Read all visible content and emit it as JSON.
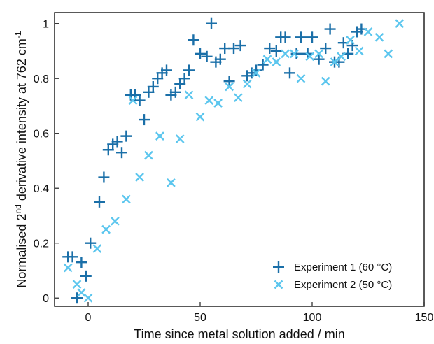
{
  "chart_data": {
    "type": "scatter",
    "title": "",
    "xlabel": "Time since metal solution added / min",
    "ylabel_main": "Normalised 2",
    "ylabel_sup1": "nd",
    "ylabel_mid": " derivative intensity at 762 cm",
    "ylabel_sup2": "-1",
    "xlim": [
      -15,
      150
    ],
    "ylim": [
      -0.03,
      1.04
    ],
    "x_ticks": [
      0,
      50,
      100,
      150
    ],
    "y_ticks": [
      0,
      0.2,
      0.4,
      0.6,
      0.8,
      1
    ],
    "grid": false,
    "legend_position": "bottom-right",
    "series": [
      {
        "name": "Experiment 1 (60 °C)",
        "marker": "plus",
        "color": "#1a6fa8",
        "points": [
          [
            -9,
            0.15
          ],
          [
            -7,
            0.15
          ],
          [
            -5,
            0.0
          ],
          [
            -3,
            0.13
          ],
          [
            -1,
            0.08
          ],
          [
            1,
            0.2
          ],
          [
            5,
            0.35
          ],
          [
            7,
            0.44
          ],
          [
            9,
            0.54
          ],
          [
            11,
            0.56
          ],
          [
            13,
            0.57
          ],
          [
            15,
            0.53
          ],
          [
            17,
            0.59
          ],
          [
            19,
            0.74
          ],
          [
            21,
            0.74
          ],
          [
            23,
            0.72
          ],
          [
            25,
            0.65
          ],
          [
            27,
            0.75
          ],
          [
            29,
            0.77
          ],
          [
            31,
            0.8
          ],
          [
            33,
            0.82
          ],
          [
            35,
            0.83
          ],
          [
            37,
            0.74
          ],
          [
            39,
            0.75
          ],
          [
            41,
            0.78
          ],
          [
            43,
            0.8
          ],
          [
            45,
            0.83
          ],
          [
            47,
            0.94
          ],
          [
            50,
            0.89
          ],
          [
            53,
            0.88
          ],
          [
            55,
            1.0
          ],
          [
            57,
            0.86
          ],
          [
            59,
            0.87
          ],
          [
            61,
            0.91
          ],
          [
            63,
            0.79
          ],
          [
            65,
            0.91
          ],
          [
            68,
            0.92
          ],
          [
            71,
            0.81
          ],
          [
            73,
            0.82
          ],
          [
            75,
            0.83
          ],
          [
            78,
            0.85
          ],
          [
            81,
            0.91
          ],
          [
            84,
            0.9
          ],
          [
            86,
            0.95
          ],
          [
            88,
            0.95
          ],
          [
            90,
            0.82
          ],
          [
            93,
            0.89
          ],
          [
            95,
            0.95
          ],
          [
            98,
            0.89
          ],
          [
            100,
            0.95
          ],
          [
            103,
            0.87
          ],
          [
            106,
            0.91
          ],
          [
            108,
            0.98
          ],
          [
            110,
            0.86
          ],
          [
            112,
            0.86
          ],
          [
            114,
            0.93
          ],
          [
            116,
            0.89
          ],
          [
            118,
            0.92
          ],
          [
            120,
            0.97
          ],
          [
            122,
            0.98
          ]
        ]
      },
      {
        "name": "Experiment 2 (50 °C)",
        "marker": "cross",
        "color": "#5cc6ee",
        "points": [
          [
            -9,
            0.11
          ],
          [
            -5,
            0.05
          ],
          [
            -3,
            0.02
          ],
          [
            0,
            0.0
          ],
          [
            4,
            0.18
          ],
          [
            8,
            0.25
          ],
          [
            12,
            0.28
          ],
          [
            17,
            0.36
          ],
          [
            20,
            0.72
          ],
          [
            23,
            0.44
          ],
          [
            27,
            0.52
          ],
          [
            32,
            0.59
          ],
          [
            37,
            0.42
          ],
          [
            41,
            0.58
          ],
          [
            45,
            0.74
          ],
          [
            50,
            0.66
          ],
          [
            54,
            0.72
          ],
          [
            58,
            0.71
          ],
          [
            63,
            0.77
          ],
          [
            67,
            0.73
          ],
          [
            71,
            0.78
          ],
          [
            75,
            0.82
          ],
          [
            80,
            0.87
          ],
          [
            84,
            0.86
          ],
          [
            88,
            0.89
          ],
          [
            92,
            0.89
          ],
          [
            95,
            0.8
          ],
          [
            99,
            0.88
          ],
          [
            103,
            0.89
          ],
          [
            106,
            0.79
          ],
          [
            110,
            0.86
          ],
          [
            113,
            0.88
          ],
          [
            117,
            0.94
          ],
          [
            121,
            0.9
          ],
          [
            125,
            0.97
          ],
          [
            130,
            0.95
          ],
          [
            134,
            0.89
          ],
          [
            139,
            1.0
          ]
        ]
      }
    ]
  }
}
